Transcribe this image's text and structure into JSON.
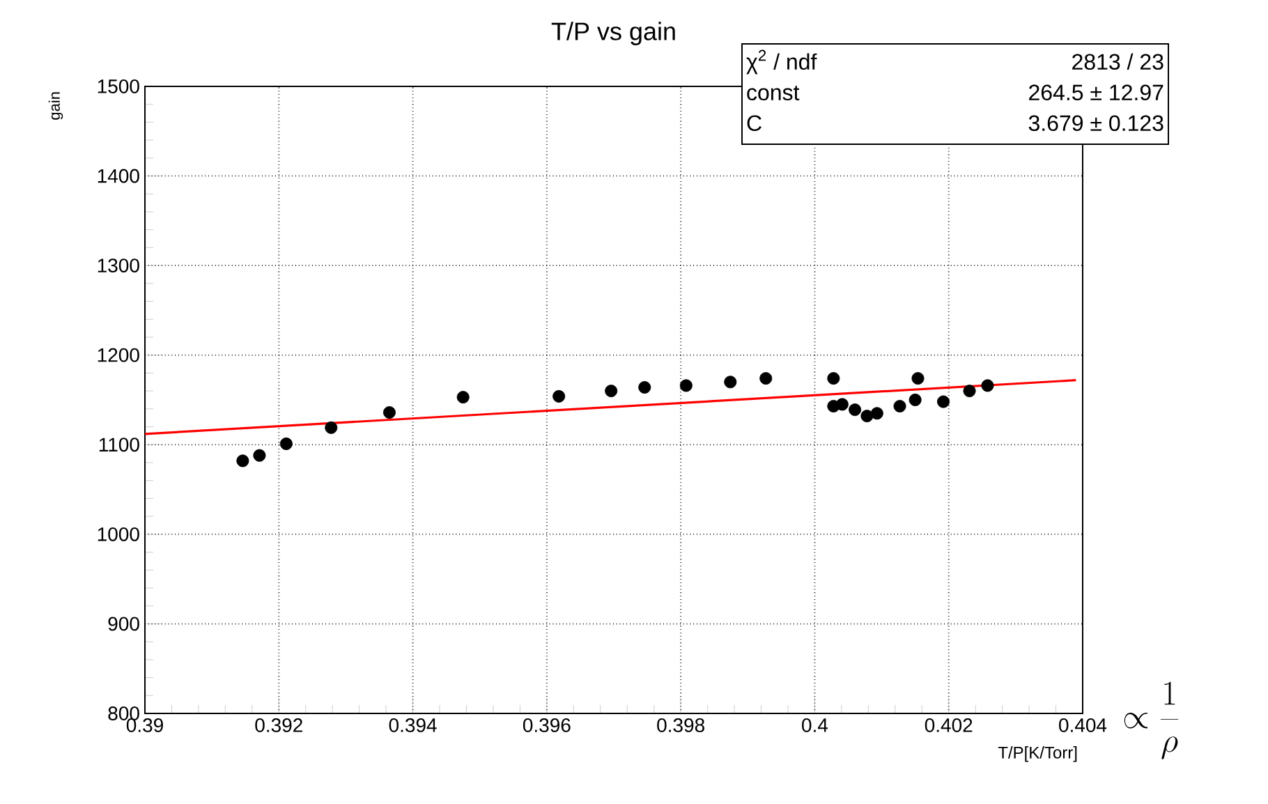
{
  "chart_data": {
    "type": "scatter",
    "title": "T/P vs gain",
    "xlabel": "T/P[K/Torr]",
    "ylabel": "gain",
    "xlim": [
      0.39,
      0.404
    ],
    "ylim": [
      800,
      1500
    ],
    "xticks": [
      0.39,
      0.392,
      0.394,
      0.396,
      0.398,
      0.4,
      0.402,
      0.404
    ],
    "yticks": [
      800,
      900,
      1000,
      1100,
      1200,
      1300,
      1400,
      1500
    ],
    "grid": true,
    "series": [
      {
        "marker": "circle",
        "color": "#000000",
        "x": [
          0.39146,
          0.39171,
          0.39211,
          0.39278,
          0.39365,
          0.39475,
          0.39618,
          0.39696,
          0.39746,
          0.39808,
          0.39874,
          0.39927,
          0.40028,
          0.40028,
          0.40041,
          0.4006,
          0.40078,
          0.40093,
          0.40127,
          0.4015,
          0.40154,
          0.40192,
          0.40231,
          0.40255,
          0.40258
        ],
        "values": [
          1082,
          1088,
          1101,
          1119,
          1136,
          1153,
          1154,
          1160,
          1164,
          1166,
          1170,
          1174,
          1174,
          1143,
          1145,
          1139,
          1132,
          1135,
          1143,
          1150,
          1174,
          1148,
          1160,
          null,
          1166
        ]
      },
      {
        "type": "line",
        "marker": "none",
        "color": "#ff0000",
        "x": [
          0.39,
          0.4039
        ],
        "values": [
          1112,
          1172
        ]
      }
    ],
    "annotations": [
      "χ$^{2}$ / ndf",
      "2813 / 23",
      "const",
      "264.5 ± 12.97",
      "C",
      "3.679 ± 0.123",
      "\\propto \\frac{1}{\\rho}"
    ]
  }
}
